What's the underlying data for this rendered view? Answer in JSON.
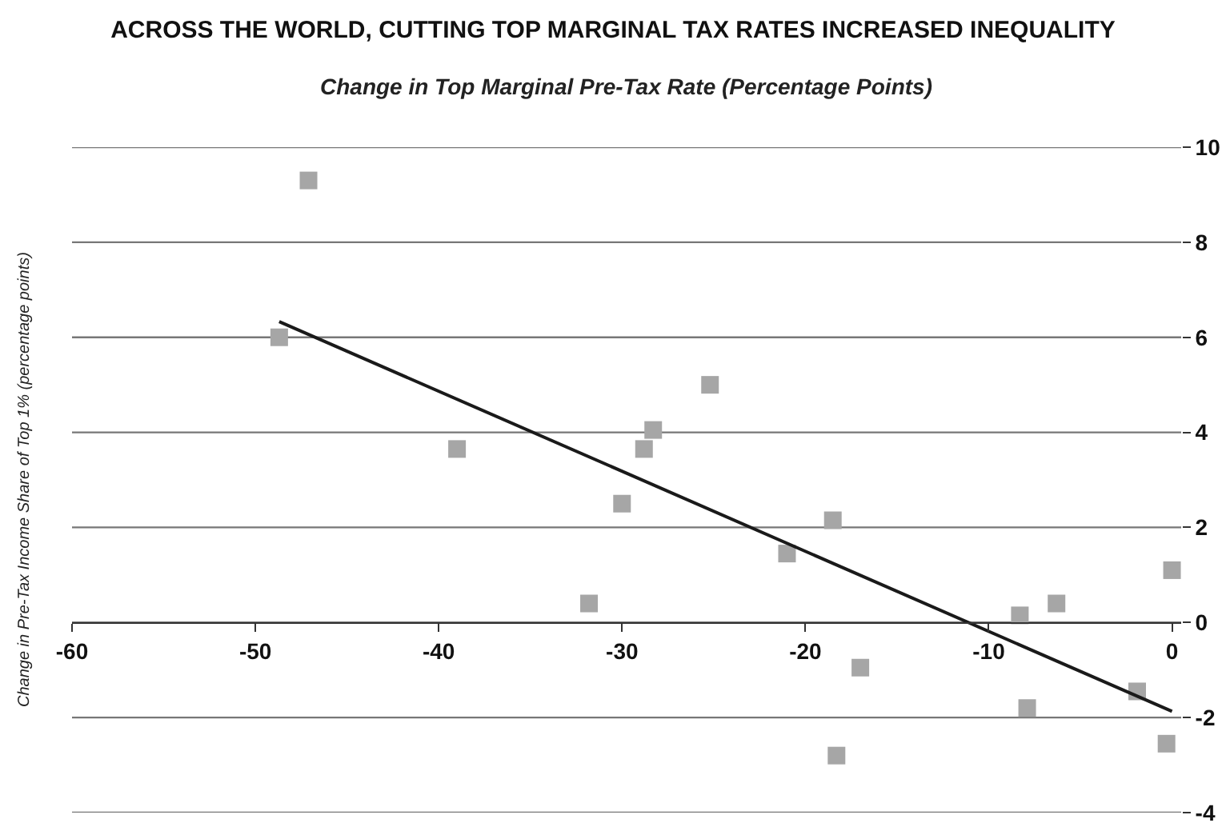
{
  "chart_data": {
    "type": "scatter",
    "title": "ACROSS THE WORLD, CUTTING TOP MARGINAL TAX RATES INCREASED INEQUALITY",
    "xlabel": "Change in Top Marginal Pre-Tax Rate (Percentage Points)",
    "ylabel": "Change in Pre-Tax Income Share of Top 1% (percentage points)",
    "xlim": [
      -60,
      0.5
    ],
    "xticks": [
      -60,
      -50,
      -40,
      -30,
      -20,
      -10,
      0
    ],
    "ylim": [
      -4,
      10
    ],
    "yticks": [
      -4,
      -2,
      0,
      2,
      4,
      6,
      8,
      10
    ],
    "grid": "y",
    "marker": "square",
    "series": [
      {
        "color": "#a6a6a6",
        "x": [
          -47.1,
          -48.7,
          -39.0,
          -31.8,
          -30.0,
          -28.8,
          -28.3,
          -25.2,
          -21.0,
          -18.5,
          -18.3,
          -17.0,
          -8.3,
          -6.3,
          -7.9,
          -1.9,
          -0.3,
          0
        ],
        "values": [
          9.3,
          6.0,
          3.65,
          0.4,
          2.5,
          3.65,
          4.05,
          5.0,
          1.45,
          2.15,
          -2.8,
          -0.95,
          0.15,
          0.4,
          -1.8,
          -1.45,
          -2.55,
          1.1
        ]
      },
      {
        "type": "line",
        "color": "#1a1a1a",
        "x": [
          -48.7,
          0
        ],
        "values": [
          6.33,
          -1.87
        ],
        "marker": "none"
      }
    ]
  }
}
